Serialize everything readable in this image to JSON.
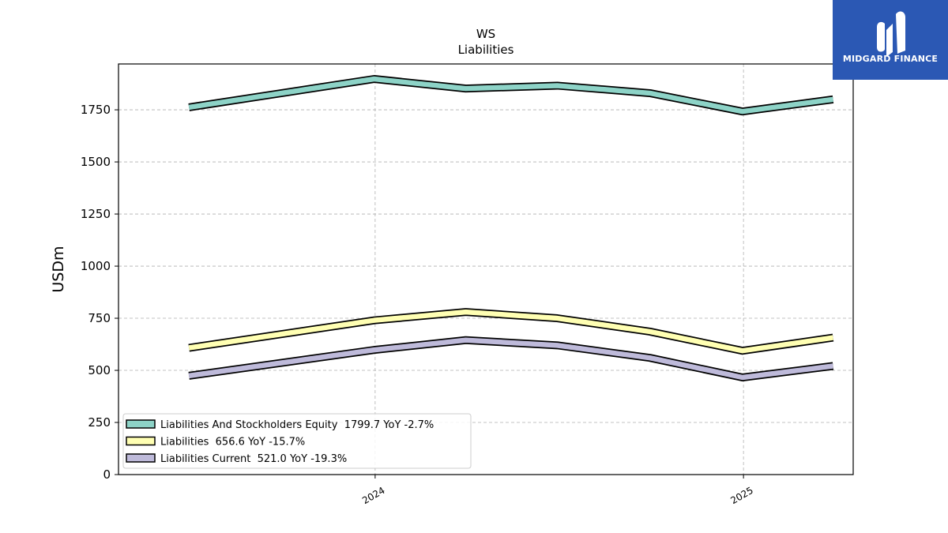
{
  "brand": {
    "name": "MIDGARD FINANCE",
    "color": "#2b58b4"
  },
  "chart_data": {
    "type": "line",
    "title": "WS",
    "subtitle": "Liabilities",
    "ylabel": "USDm",
    "xlabel": "",
    "ylim": [
      0,
      1970
    ],
    "yticks": [
      0,
      250,
      500,
      750,
      1000,
      1250,
      1500,
      1750
    ],
    "xlim": [
      "2023-04-21",
      "2025-04-20"
    ],
    "xticks": [
      {
        "label": "2024",
        "date": "2024-01-01"
      },
      {
        "label": "2025",
        "date": "2025-01-01"
      }
    ],
    "grid": true,
    "legend_position": "lower-left",
    "x": [
      "2023-06-30",
      "2023-12-31",
      "2024-03-31",
      "2024-06-30",
      "2024-09-30",
      "2024-12-31",
      "2025-03-31"
    ],
    "series": [
      {
        "name": "Liabilities And Stockholders Equity  1799.7 YoY -2.7%",
        "color": "#8dd3c7",
        "values": [
          1762,
          1898,
          1852,
          1866,
          1830,
          1742,
          1800
        ]
      },
      {
        "name": "Liabilities  656.6 YoY -15.7%",
        "color": "#ffffb3",
        "values": [
          608,
          740,
          780,
          750,
          686,
          594,
          657
        ]
      },
      {
        "name": "Liabilities Current  521.0 YoY -19.3%",
        "color": "#bebada",
        "values": [
          474,
          598,
          645,
          620,
          560,
          466,
          521
        ]
      }
    ]
  }
}
